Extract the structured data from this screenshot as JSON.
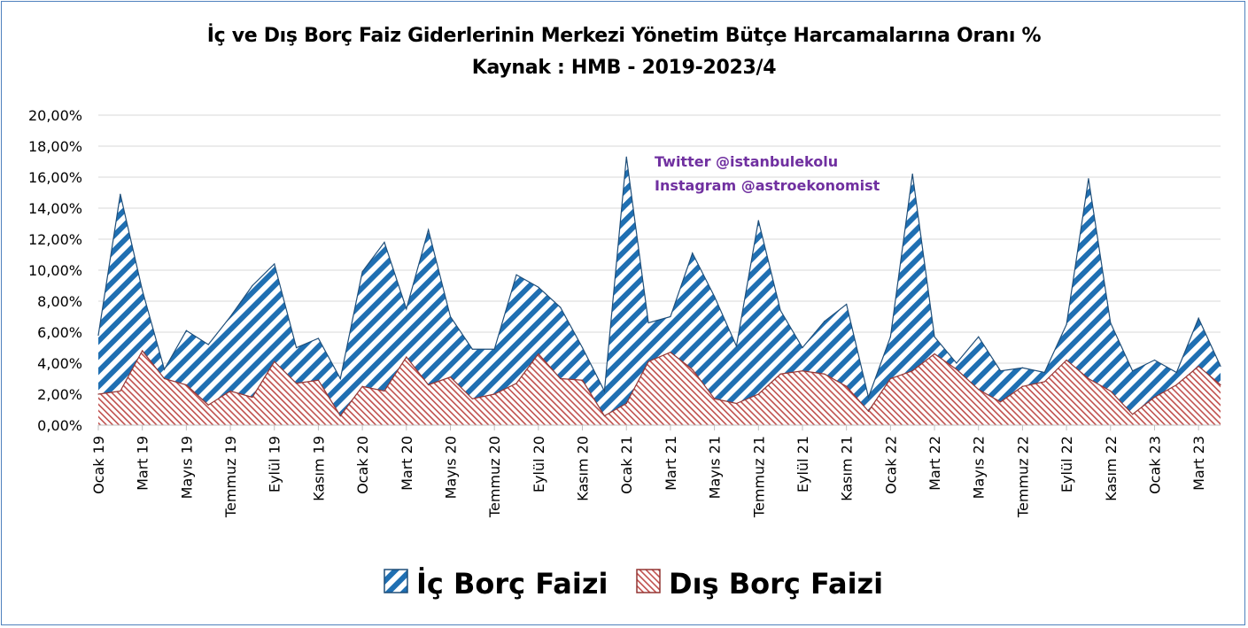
{
  "colors": {
    "ic": "#1f6fb2",
    "dis": "#c0504d",
    "grid": "#d9d9d9",
    "frame": "#4f81bd",
    "watermark": "#7030a0"
  },
  "watermark": {
    "line1": "Twitter @istanbulekolu",
    "line2": "Instagram @astroekonomist"
  },
  "chart_data": {
    "type": "area",
    "stacked": false,
    "title": "İç ve Dış Borç Faiz Giderlerinin Merkezi Yönetim Bütçe Harcamalarına Oranı %",
    "subtitle": "Kaynak : HMB - 2019-2023/4",
    "ylim": [
      0,
      20
    ],
    "yticks": [
      "0,00%",
      "2,00%",
      "4,00%",
      "6,00%",
      "8,00%",
      "10,00%",
      "12,00%",
      "14,00%",
      "16,00%",
      "18,00%",
      "20,00%"
    ],
    "grid": true,
    "legend": "bottom",
    "xtick_labels": [
      {
        "i": 0,
        "label": "Ocak 19"
      },
      {
        "i": 2,
        "label": "Mart 19"
      },
      {
        "i": 4,
        "label": "Mayıs 19"
      },
      {
        "i": 6,
        "label": "Temmuz 19"
      },
      {
        "i": 8,
        "label": "Eylül 19"
      },
      {
        "i": 10,
        "label": "Kasım 19"
      },
      {
        "i": 12,
        "label": "Ocak 20"
      },
      {
        "i": 14,
        "label": "Mart 20"
      },
      {
        "i": 16,
        "label": "Mayıs 20"
      },
      {
        "i": 18,
        "label": "Temmuz 20"
      },
      {
        "i": 20,
        "label": "Eylül 20"
      },
      {
        "i": 22,
        "label": "Kasım 20"
      },
      {
        "i": 24,
        "label": "Ocak 21"
      },
      {
        "i": 26,
        "label": "Mart 21"
      },
      {
        "i": 28,
        "label": "Mayıs 21"
      },
      {
        "i": 30,
        "label": "Temmuz 21"
      },
      {
        "i": 32,
        "label": "Eylül 21"
      },
      {
        "i": 34,
        "label": "Kasım 21"
      },
      {
        "i": 36,
        "label": "Ocak 22"
      },
      {
        "i": 38,
        "label": "Mart 22"
      },
      {
        "i": 40,
        "label": "Mayıs 22"
      },
      {
        "i": 42,
        "label": "Temmuz 22"
      },
      {
        "i": 44,
        "label": "Eylül 22"
      },
      {
        "i": 46,
        "label": "Kasım 22"
      },
      {
        "i": 48,
        "label": "Ocak 23"
      },
      {
        "i": 50,
        "label": "Mart 23"
      }
    ],
    "series": [
      {
        "name": "İç Borç Faizi",
        "values": [
          5.8,
          14.9,
          8.7,
          3.6,
          6.1,
          5.2,
          7.0,
          9.0,
          10.4,
          5.0,
          5.6,
          3.0,
          9.9,
          11.8,
          7.5,
          12.6,
          7.0,
          4.9,
          4.9,
          9.7,
          8.9,
          7.6,
          5.0,
          2.2,
          17.3,
          6.6,
          7.0,
          11.1,
          8.3,
          5.1,
          13.2,
          7.4,
          5.0,
          6.7,
          7.8,
          1.8,
          5.7,
          16.2,
          5.7,
          4.0,
          5.7,
          3.5,
          3.7,
          3.4,
          6.5,
          15.9,
          6.6,
          3.5,
          4.2,
          3.4,
          6.9,
          3.8
        ]
      },
      {
        "name": "Dış Borç Faizi",
        "values": [
          2.0,
          2.2,
          4.8,
          3.0,
          2.6,
          1.3,
          2.2,
          1.8,
          4.1,
          2.7,
          2.9,
          0.6,
          2.5,
          2.2,
          4.4,
          2.6,
          3.1,
          1.7,
          2.0,
          2.7,
          4.6,
          3.0,
          2.9,
          0.6,
          1.4,
          4.1,
          4.7,
          3.6,
          1.7,
          1.4,
          2.0,
          3.3,
          3.5,
          3.3,
          2.5,
          0.9,
          3.0,
          3.5,
          4.6,
          3.6,
          2.3,
          1.5,
          2.5,
          2.8,
          4.2,
          3.0,
          2.2,
          0.7,
          1.8,
          2.6,
          3.8,
          2.6
        ]
      }
    ]
  }
}
